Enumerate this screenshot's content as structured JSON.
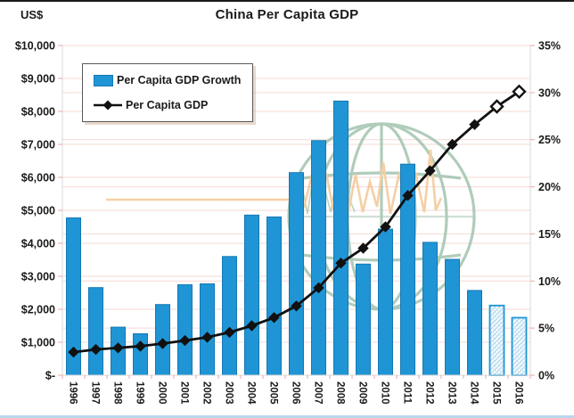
{
  "chart": {
    "title": "China Per Capita GDP",
    "left_axis_unit": "US$",
    "legend": [
      {
        "label": "Per Capita GDP Growth"
      },
      {
        "label": "Per Capita GDP"
      }
    ]
  },
  "chart_data": {
    "type": "combo-bar-line",
    "title": "China Per Capita GDP",
    "categories": [
      "1996",
      "1997",
      "1998",
      "1999",
      "2000",
      "2001",
      "2002",
      "2003",
      "2004",
      "2005",
      "2006",
      "2007",
      "2008",
      "2009",
      "2010",
      "2011",
      "2012",
      "2013",
      "2014",
      "2015",
      "2016"
    ],
    "series": [
      {
        "name": "Per Capita GDP Growth",
        "type": "bar",
        "axis": "right",
        "unit": "percent",
        "values": [
          16.7,
          9.3,
          5.1,
          4.4,
          7.5,
          9.6,
          9.7,
          12.6,
          17.0,
          16.8,
          21.5,
          24.9,
          29.1,
          11.8,
          15.5,
          22.4,
          14.1,
          12.3,
          9.0,
          7.4,
          6.1
        ],
        "projected_years": [
          "2015",
          "2016"
        ]
      },
      {
        "name": "Per Capita GDP",
        "type": "line",
        "axis": "left",
        "unit": "USD",
        "values": [
          700,
          780,
          830,
          880,
          960,
          1050,
          1150,
          1300,
          1500,
          1750,
          2100,
          2650,
          3400,
          3850,
          4500,
          5450,
          6200,
          7000,
          7600,
          8150,
          8600
        ],
        "projected_years": [
          "2015",
          "2016"
        ]
      }
    ],
    "left_axis": {
      "title": "US$",
      "min": 0,
      "max": 10000,
      "step": 1000,
      "tick_labels": [
        "$-",
        "$1,000",
        "$2,000",
        "$3,000",
        "$4,000",
        "$5,000",
        "$6,000",
        "$7,000",
        "$8,000",
        "$9,000",
        "$10,000"
      ]
    },
    "right_axis": {
      "min": 0,
      "max": 35,
      "step": 5,
      "tick_labels": [
        "0%",
        "5%",
        "10%",
        "15%",
        "20%",
        "25%",
        "30%",
        "35%"
      ]
    },
    "grid": true,
    "legend_position": "inside-top-left",
    "colors": {
      "bar": "#2095D5",
      "bar_border": "#1478B4",
      "projected_hatch": "#9FD0EC",
      "line": "#111111",
      "grid": "#F6D9D3",
      "tick": "#E9AAA2",
      "axis_line": "#D9D9D9",
      "text": "#1A1A1A",
      "watermark_green": "#9DC0A9",
      "watermark_orange": "#F3C48E",
      "bottom_rule": "#B9D6EB"
    }
  }
}
